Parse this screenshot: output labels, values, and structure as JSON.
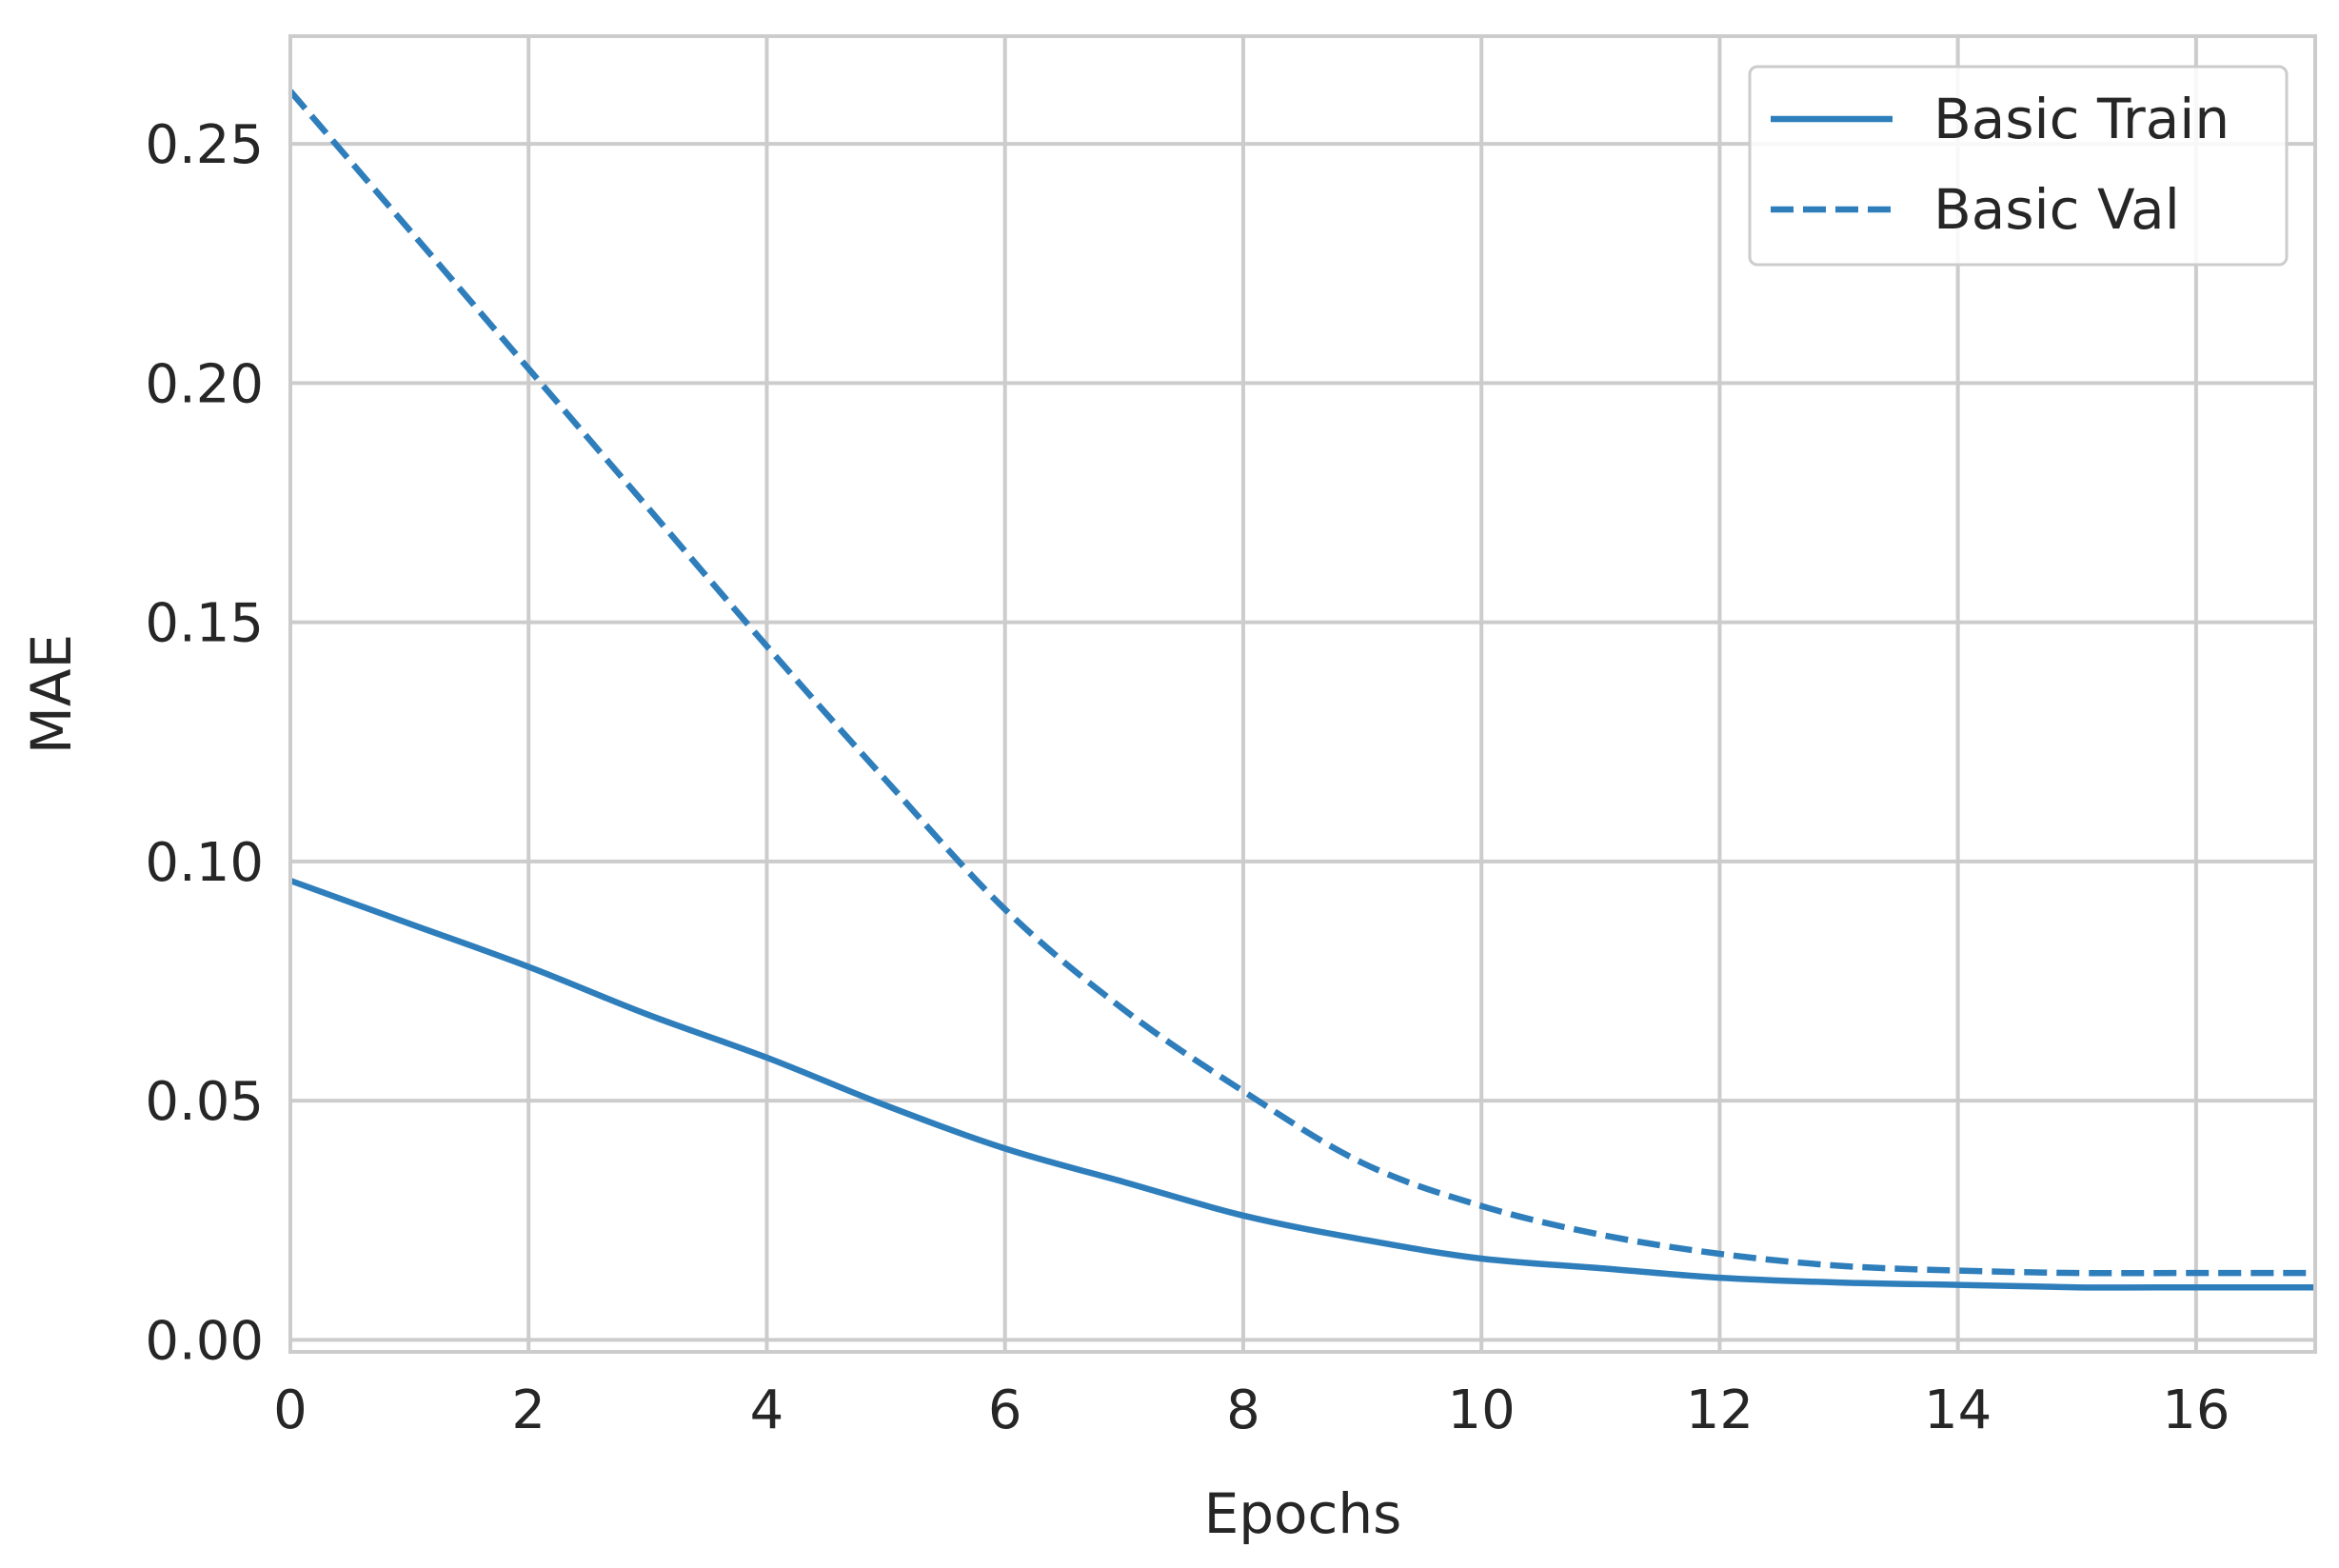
{
  "chart_data": {
    "type": "line",
    "title": "",
    "xlabel": "Epochs",
    "ylabel": "MAE",
    "xlim": [
      0,
      17
    ],
    "ylim": [
      -0.0025,
      0.2725
    ],
    "xticks": [
      0,
      2,
      4,
      6,
      8,
      10,
      12,
      14,
      16
    ],
    "yticks": [
      0.0,
      0.05,
      0.1,
      0.15,
      0.2,
      0.25
    ],
    "ytick_labels": [
      "0.00",
      "0.05",
      "0.10",
      "0.15",
      "0.20",
      "0.25"
    ],
    "grid": true,
    "legend": "top-right",
    "x": [
      0,
      1,
      2,
      3,
      4,
      5,
      6,
      7,
      8,
      9,
      10,
      11,
      12,
      13,
      14,
      15,
      16,
      17
    ],
    "series": [
      {
        "name": "Basic Train",
        "style": "solid",
        "color": "#2f7ebc",
        "values": [
          0.096,
          0.087,
          0.078,
          0.068,
          0.059,
          0.049,
          0.04,
          0.033,
          0.026,
          0.021,
          0.017,
          0.015,
          0.013,
          0.012,
          0.0115,
          0.011,
          0.011,
          0.011
        ]
      },
      {
        "name": "Basic Val",
        "style": "dashed",
        "color": "#2f7ebc",
        "values": [
          0.261,
          0.232,
          0.203,
          0.174,
          0.145,
          0.117,
          0.09,
          0.069,
          0.052,
          0.037,
          0.028,
          0.022,
          0.018,
          0.0155,
          0.0145,
          0.014,
          0.014,
          0.014
        ]
      }
    ]
  }
}
